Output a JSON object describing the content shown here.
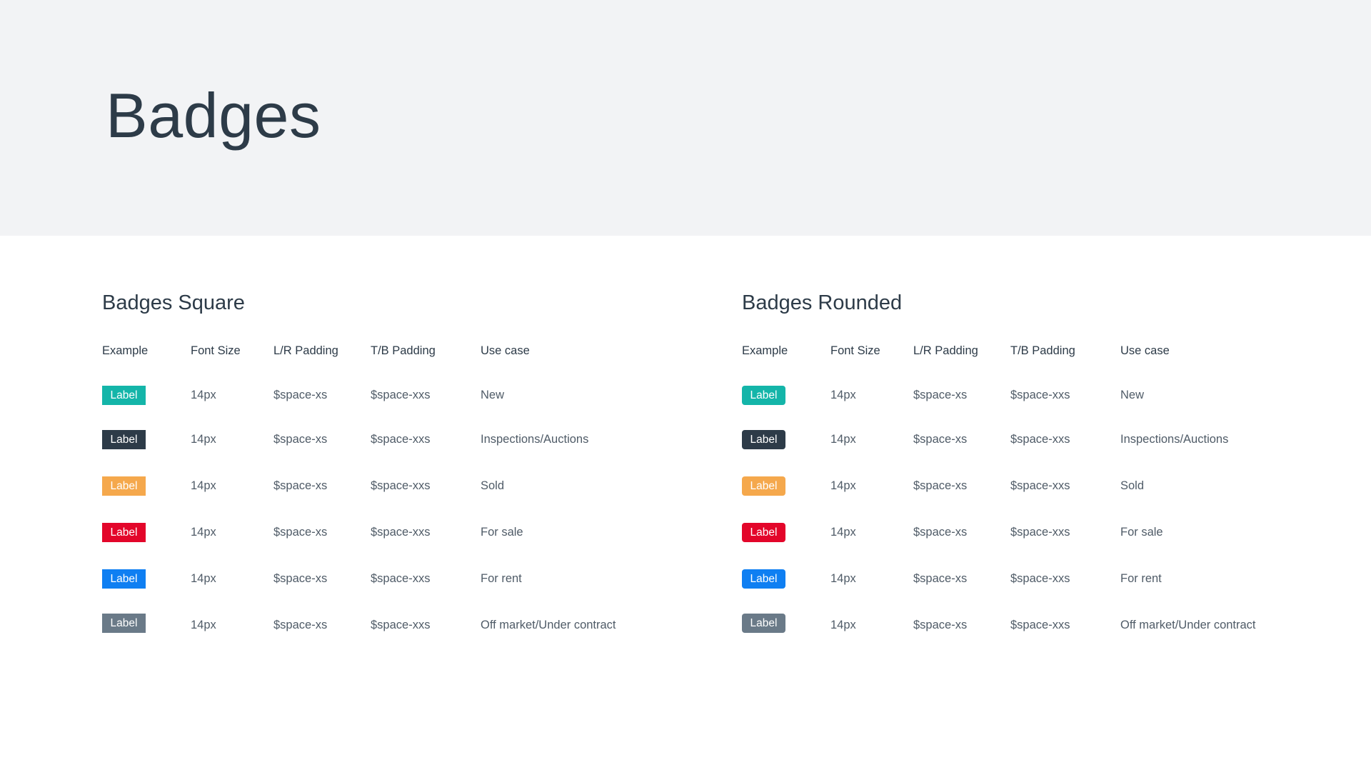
{
  "header": {
    "title": "Badges"
  },
  "colors": {
    "teal": "#14b5a9",
    "dark": "#2d3b48",
    "orange": "#f5a84c",
    "red": "#e3062a",
    "blue": "#0f7ff2",
    "gray": "#6a7a88"
  },
  "columns": [
    "Example",
    "Font Size",
    "L/R Padding",
    "T/B Padding",
    "Use case"
  ],
  "sections": [
    {
      "title": "Badges Square",
      "style": "square",
      "rows": [
        {
          "badge": "Label",
          "color": "#14b5a9",
          "font_size": "14px",
          "lr_padding": "$space-xs",
          "tb_padding": "$space-xxs",
          "use_case": "New"
        },
        {
          "badge": "Label",
          "color": "#2d3b48",
          "font_size": "14px",
          "lr_padding": "$space-xs",
          "tb_padding": "$space-xxs",
          "use_case": "Inspections/Auctions"
        },
        {
          "badge": "Label",
          "color": "#f5a84c",
          "font_size": "14px",
          "lr_padding": "$space-xs",
          "tb_padding": "$space-xxs",
          "use_case": "Sold"
        },
        {
          "badge": "Label",
          "color": "#e3062a",
          "font_size": "14px",
          "lr_padding": "$space-xs",
          "tb_padding": "$space-xxs",
          "use_case": "For sale"
        },
        {
          "badge": "Label",
          "color": "#0f7ff2",
          "font_size": "14px",
          "lr_padding": "$space-xs",
          "tb_padding": "$space-xxs",
          "use_case": "For rent"
        },
        {
          "badge": "Label",
          "color": "#6a7a88",
          "font_size": "14px",
          "lr_padding": "$space-xs",
          "tb_padding": "$space-xxs",
          "use_case": "Off market/Under contract"
        }
      ]
    },
    {
      "title": "Badges Rounded",
      "style": "rounded",
      "rows": [
        {
          "badge": "Label",
          "color": "#14b5a9",
          "font_size": "14px",
          "lr_padding": "$space-xs",
          "tb_padding": "$space-xxs",
          "use_case": "New"
        },
        {
          "badge": "Label",
          "color": "#2d3b48",
          "font_size": "14px",
          "lr_padding": "$space-xs",
          "tb_padding": "$space-xxs",
          "use_case": "Inspections/Auctions"
        },
        {
          "badge": "Label",
          "color": "#f5a84c",
          "font_size": "14px",
          "lr_padding": "$space-xs",
          "tb_padding": "$space-xxs",
          "use_case": "Sold"
        },
        {
          "badge": "Label",
          "color": "#e3062a",
          "font_size": "14px",
          "lr_padding": "$space-xs",
          "tb_padding": "$space-xxs",
          "use_case": "For sale"
        },
        {
          "badge": "Label",
          "color": "#0f7ff2",
          "font_size": "14px",
          "lr_padding": "$space-xs",
          "tb_padding": "$space-xxs",
          "use_case": "For rent"
        },
        {
          "badge": "Label",
          "color": "#6a7a88",
          "font_size": "14px",
          "lr_padding": "$space-xs",
          "tb_padding": "$space-xxs",
          "use_case": "Off market/Under contract"
        }
      ]
    }
  ]
}
